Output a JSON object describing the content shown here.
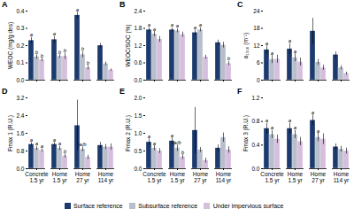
{
  "chart_data": [
    {
      "type": "bar",
      "title": "A",
      "ylabel": "WEOC (mg/g des)",
      "categories": [
        "Concrete\n1.5 yr",
        "Home\n1.5 yr",
        "Home\n27 yr",
        "Home\n114 yr"
      ],
      "ylim": [
        0,
        0.4
      ],
      "yticks": [
        {
          "value": 0,
          "label": "0.0"
        },
        0.1,
        0.2,
        0.3,
        0.4
      ],
      "tick_labels": "y",
      "grid": false,
      "legend": "bottom",
      "series": [
        {
          "name": "Surface reference",
          "color": "#1c3a6e",
          "values": [
            0.23,
            0.235,
            0.375,
            0.2
          ],
          "errors": [
            0.018,
            0.018,
            0.018,
            0.013
          ],
          "letters": [
            "a",
            "a",
            "a",
            null
          ]
        },
        {
          "name": "Subsurface reference",
          "color": "#b8bfcc",
          "values": [
            0.135,
            0.138,
            0.148,
            0.095
          ],
          "errors": [
            0.013,
            0.01,
            0.018,
            0.01
          ],
          "letters": [
            "b",
            "b",
            "b",
            null
          ]
        },
        {
          "name": "Under impervious surface",
          "color": "#d6bedd",
          "values": [
            0.118,
            0.138,
            0.072,
            0.058
          ],
          "errors": [
            0.01,
            0.018,
            0.013,
            0.007
          ],
          "letters": [
            "b",
            "b",
            "b",
            null
          ]
        }
      ]
    },
    {
      "type": "bar",
      "title": "B",
      "ylabel": "WEOC/SOC (%)",
      "categories": [
        "Concrete\n1.5 yr",
        "Home\n1.5 yr",
        "Home\n27 yr",
        "Home\n114 yr"
      ],
      "ylim": [
        0,
        2.4
      ],
      "yticks": [
        {
          "value": 0,
          "label": "0.0"
        },
        0.6,
        1.2,
        1.8,
        2.4
      ],
      "tick_labels": "y",
      "grid": false,
      "legend": "bottom",
      "series": [
        {
          "name": "Surface reference",
          "color": "#1c3a6e",
          "values": [
            1.75,
            1.75,
            1.65,
            1.3
          ],
          "errors": [
            0.07,
            0.07,
            0.09,
            0.09
          ],
          "letters": [
            "a",
            "a",
            "a",
            null
          ]
        },
        {
          "name": "Subsurface reference",
          "color": "#b8bfcc",
          "values": [
            1.6,
            1.72,
            1.75,
            1.22
          ],
          "errors": [
            0.09,
            0.07,
            0.07,
            0.1
          ],
          "letters": [
            "a",
            "a",
            "a",
            null
          ]
        },
        {
          "name": "Under impervious surface",
          "color": "#d6bedd",
          "values": [
            1.42,
            1.58,
            0.8,
            0.58
          ],
          "errors": [
            0.1,
            0.09,
            0.07,
            0.07
          ],
          "letters": [
            null,
            null,
            null,
            "b"
          ]
        }
      ]
    },
    {
      "type": "bar",
      "title": "C",
      "ylabel": "a₁₃₅₀ (m⁻¹)",
      "categories": [
        "Concrete\n1.5 yr",
        "Home\n1.5 yr",
        "Home\n27 yr",
        "Home\n114 yr"
      ],
      "ylim": [
        0,
        24
      ],
      "yticks": [
        0,
        6,
        12,
        18,
        24
      ],
      "tick_labels": "y",
      "grid": false,
      "legend": "bottom",
      "series": [
        {
          "name": "Surface reference",
          "color": "#1c3a6e",
          "values": [
            10.5,
            10.8,
            17.0,
            8.8
          ],
          "errors": [
            1.4,
            1.9,
            4.5,
            1.0
          ],
          "letters": [
            "a",
            "a",
            null,
            null
          ]
        },
        {
          "name": "Subsurface reference",
          "color": "#b8bfcc",
          "values": [
            7.2,
            7.8,
            6.2,
            4.3
          ],
          "errors": [
            1.4,
            1.4,
            1.0,
            0.7
          ],
          "letters": [
            "a",
            "a",
            null,
            null
          ]
        },
        {
          "name": "Under impervious surface",
          "color": "#d6bedd",
          "values": [
            7.3,
            6.3,
            4.3,
            2.3
          ],
          "errors": [
            1.4,
            1.4,
            0.9,
            0.5
          ],
          "letters": [
            null,
            null,
            null,
            null
          ]
        }
      ]
    },
    {
      "type": "bar",
      "title": "D",
      "ylabel": "Fmax 1 (R.U.)",
      "categories": [
        "Concrete\n1.5 yr",
        "Home\n1.5 yr",
        "Home\n27 yr",
        "Home\n114 yr"
      ],
      "ylim": [
        0,
        3.2
      ],
      "yticks": [
        {
          "value": 0,
          "label": "0.0"
        },
        0.8,
        1.6,
        2.4,
        3.2
      ],
      "grid": false,
      "legend": "bottom",
      "series": [
        {
          "name": "Surface reference",
          "color": "#1c3a6e",
          "values": [
            1.1,
            1.1,
            1.95,
            1.05
          ],
          "errors": [
            0.09,
            0.09,
            1.15,
            0.14
          ],
          "letters": [
            "a",
            "a",
            null,
            null
          ]
        },
        {
          "name": "Subsurface reference",
          "color": "#b8bfcc",
          "values": [
            0.92,
            0.92,
            0.88,
            0.98
          ],
          "errors": [
            0.09,
            0.09,
            0.11,
            0.11
          ],
          "letters": [
            "a",
            "a",
            "a/b",
            null
          ]
        },
        {
          "name": "Under impervious surface",
          "color": "#d6bedd",
          "values": [
            0.83,
            0.58,
            0.52,
            0.98
          ],
          "errors": [
            0.07,
            0.09,
            0.09,
            0.14
          ],
          "letters": [
            "a",
            "b",
            null,
            null
          ]
        }
      ]
    },
    {
      "type": "bar",
      "title": "E",
      "ylabel": "Fmax 2 (R.U.)",
      "categories": [
        "Concrete\n1.5 yr",
        "Home\n1.5 yr",
        "Home\n27 yr",
        "Home\n114 yr"
      ],
      "ylim": [
        0,
        2.0
      ],
      "yticks": [
        {
          "value": 0,
          "label": "0.0"
        },
        0.5,
        {
          "value": 1.0,
          "label": "1.0"
        },
        1.5,
        {
          "value": 2.0,
          "label": "2.0"
        }
      ],
      "grid": false,
      "legend": "bottom",
      "series": [
        {
          "name": "Surface reference",
          "color": "#1c3a6e",
          "values": [
            0.75,
            0.78,
            1.08,
            0.58
          ],
          "errors": [
            0.09,
            0.09,
            0.65,
            0.09
          ],
          "letters": [
            "a",
            "a",
            null,
            null
          ]
        },
        {
          "name": "Subsurface reference",
          "color": "#b8bfcc",
          "values": [
            0.58,
            0.58,
            0.53,
            0.88
          ],
          "errors": [
            0.07,
            0.09,
            0.07,
            0.13
          ],
          "letters": [
            "a",
            "a/b",
            null,
            null
          ]
        },
        {
          "name": "Under impervious surface",
          "color": "#d6bedd",
          "values": [
            0.5,
            0.33,
            0.23,
            0.53
          ],
          "errors": [
            0.07,
            0.07,
            0.07,
            0.09
          ],
          "letters": [
            null,
            "b",
            null,
            null
          ]
        }
      ]
    },
    {
      "type": "bar",
      "title": "F",
      "ylabel": "Fmax 3 (R.U.)",
      "categories": [
        "Concrete\n1.5 yr",
        "Home\n1.5 yr",
        "Home\n27 yr",
        "Home\n114 yr"
      ],
      "ylim": [
        0,
        1.2
      ],
      "yticks": [
        {
          "value": 0,
          "label": "0.0"
        },
        0.4,
        0.8,
        1.2
      ],
      "grid": false,
      "legend": "bottom",
      "series": [
        {
          "name": "Surface reference",
          "color": "#1c3a6e",
          "values": [
            0.68,
            0.68,
            0.82,
            0.37
          ],
          "errors": [
            0.09,
            0.09,
            0.09,
            0.05
          ],
          "letters": [
            "a",
            "a",
            "a",
            null
          ]
        },
        {
          "name": "Subsurface reference",
          "color": "#b8bfcc",
          "values": [
            0.58,
            0.58,
            0.53,
            0.33
          ],
          "errors": [
            0.07,
            0.07,
            0.07,
            0.05
          ],
          "letters": [
            "a",
            "a",
            "a",
            null
          ]
        },
        {
          "name": "Under impervious surface",
          "color": "#d6bedd",
          "values": [
            0.5,
            0.46,
            0.5,
            0.3
          ],
          "errors": [
            0.07,
            0.07,
            0.09,
            0.05
          ],
          "letters": [
            null,
            null,
            null,
            null
          ]
        }
      ]
    }
  ]
}
